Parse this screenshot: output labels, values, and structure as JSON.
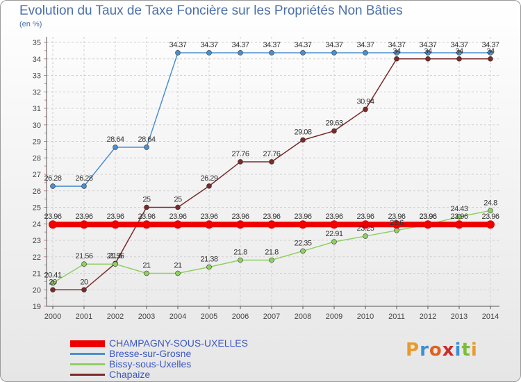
{
  "header": {
    "title": "Evolution du Taux de Taxe Foncière sur les Propriétés Non Bâties",
    "unit": "(en %)"
  },
  "logo": {
    "letters": [
      "P",
      "r",
      "o",
      "x",
      "i",
      "t",
      "i"
    ],
    "colors": [
      "#e89a2c",
      "#3a8fd6",
      "#e06020",
      "#cc2a2a",
      "#3a8fd6",
      "#7cbd3a",
      "#e89a2c"
    ]
  },
  "chart_data": {
    "type": "line",
    "title": "Evolution du Taux de Taxe Foncière sur les Propriétés Non Bâties",
    "ylabel": "(en %)",
    "xlabel": "",
    "ylim": [
      19,
      35
    ],
    "grid": true,
    "x": [
      "2000",
      "2001",
      "2002",
      "2003",
      "2004",
      "2005",
      "2006",
      "2007",
      "2008",
      "2009",
      "2010",
      "2011",
      "2012",
      "2013",
      "2014"
    ],
    "y_ticks": [
      "19",
      "20",
      "21",
      "22",
      "23",
      "24",
      "25",
      "26",
      "27",
      "28",
      "29",
      "30",
      "31",
      "32",
      "33",
      "34",
      "35"
    ],
    "series": [
      {
        "name": "CHAMPAGNY-SOUS-UXELLES",
        "color": "#ee0000",
        "values": [
          23.96,
          23.96,
          23.96,
          23.96,
          23.96,
          23.96,
          23.96,
          23.96,
          23.96,
          23.96,
          23.96,
          23.96,
          23.96,
          23.96,
          23.96
        ],
        "labels": [
          "23.96",
          "23.96",
          "23.96",
          "23.96",
          "23.96",
          "23.96",
          "23.96",
          "23.96",
          "23.96",
          "23.96",
          "23.96",
          "23.96",
          "23.96",
          "23.96",
          "23.96"
        ]
      },
      {
        "name": "Bresse-sur-Grosne",
        "color": "#4a8fcf",
        "values": [
          26.28,
          26.28,
          28.64,
          28.64,
          34.37,
          34.37,
          34.37,
          34.37,
          34.37,
          34.37,
          34.37,
          34.37,
          34.37,
          34.37,
          34.37
        ],
        "labels": [
          "26.28",
          "26.28",
          "28.64",
          "28.64",
          "34.37",
          "34.37",
          "34.37",
          "34.37",
          "34.37",
          "34.37",
          "34.37",
          "34.37",
          "34.37",
          "34.37",
          "34.37"
        ]
      },
      {
        "name": "Bissy-sous-Uxelles",
        "color": "#8fd060",
        "values": [
          20.41,
          21.56,
          21.56,
          21,
          21,
          21.38,
          21.8,
          21.8,
          22.35,
          22.91,
          23.25,
          23.6,
          23.96,
          24.43,
          24.8
        ],
        "labels": [
          "20.41",
          "21.56",
          "21.56",
          "21",
          "21",
          "21.38",
          "21.8",
          "21.8",
          "22.35",
          "22.91",
          "23.25",
          "23.6",
          "23.96",
          "24.43",
          "24.8"
        ]
      },
      {
        "name": "Chapaize",
        "color": "#7a2a2a",
        "values": [
          20,
          20,
          21.6,
          25,
          25,
          26.29,
          27.76,
          27.76,
          29.08,
          29.63,
          30.94,
          34,
          34,
          34,
          34
        ],
        "labels": [
          "20",
          "20",
          "21.6",
          "25",
          "25",
          "26.29",
          "27.76",
          "27.76",
          "29.08",
          "29.63",
          "30.94",
          "34",
          "34",
          "34",
          "34"
        ]
      }
    ]
  }
}
